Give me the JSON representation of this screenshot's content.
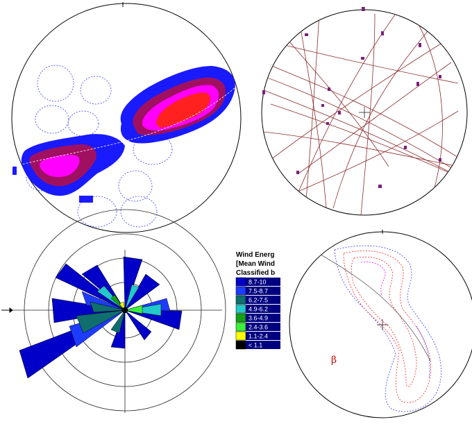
{
  "panels": {
    "contour": {
      "name": "density-contour-stereonet"
    },
    "great_circles": {
      "name": "great-circle-stereonet"
    },
    "rose": {
      "name": "wind-rose-plot"
    },
    "dashed_contour": {
      "name": "dashed-contour-stereonet"
    }
  },
  "legend": {
    "title_lines": [
      "Wind Energ",
      "[Mean Wind",
      "Classified b"
    ],
    "classes": [
      {
        "label": "8.7-10",
        "color": "#0000c8"
      },
      {
        "label": "7.5-8.7",
        "color": "#1e3cff"
      },
      {
        "label": "6.2-7.5",
        "color": "#0f6e6e"
      },
      {
        "label": "4.9-6.2",
        "color": "#23c8c8"
      },
      {
        "label": "3.6-4.9",
        "color": "#14a014"
      },
      {
        "label": "2.4-3.6",
        "color": "#3cf03c"
      },
      {
        "label": "1.1-2.4",
        "color": "#ffff00"
      },
      {
        "label": "< 1.1",
        "color": "#000000"
      }
    ]
  },
  "beta_label": "β",
  "colors": {
    "outline": "#000000",
    "great_circle": "#8b2a2a",
    "pole": "#7a1f7a",
    "contour_dash": "#3a3aff",
    "contour_red": "#ff2020",
    "contour_magenta": "#ff00ff",
    "contour_purple": "#a01060",
    "contour_blue": "#1a1aff",
    "rose_grid": "#222222"
  }
}
